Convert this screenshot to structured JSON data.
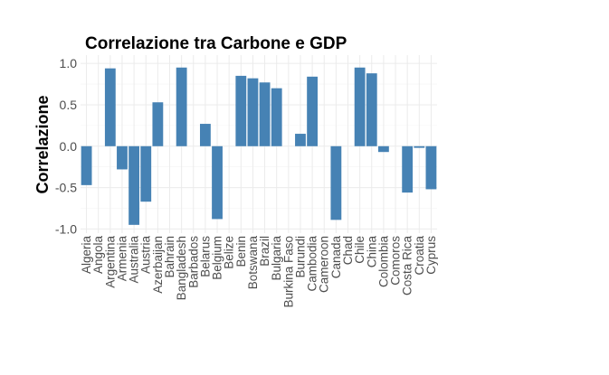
{
  "chart_data": {
    "type": "bar",
    "title": "Correlazione tra Carbone e GDP",
    "xlabel": "",
    "ylabel": "Correlazione",
    "ylim": [
      -1.05,
      1.1
    ],
    "yticks": [
      -1.0,
      -0.5,
      0.0,
      0.5,
      1.0
    ],
    "ytick_labels": [
      "-1.0",
      "-0.5",
      "0.0",
      "0.5",
      "1.0"
    ],
    "grid": true,
    "bar_color": "#4682b4",
    "categories": [
      "Algeria",
      "Angola",
      "Argentina",
      "Armenia",
      "Australia",
      "Austria",
      "Azerbaijan",
      "Bahrain",
      "Bangladesh",
      "Barbados",
      "Belarus",
      "Belgium",
      "Belize",
      "Benin",
      "Botswana",
      "Brazil",
      "Bulgaria",
      "Burkina Faso",
      "Burundi",
      "Cambodia",
      "Cameroon",
      "Canada",
      "Chad",
      "Chile",
      "China",
      "Colombia",
      "Comoros",
      "Costa Rica",
      "Croatia",
      "Cyprus"
    ],
    "values": [
      -0.47,
      null,
      0.94,
      -0.28,
      -0.95,
      -0.67,
      0.53,
      null,
      0.95,
      null,
      0.27,
      -0.88,
      null,
      0.85,
      0.82,
      0.77,
      0.7,
      null,
      0.15,
      0.84,
      null,
      -0.89,
      null,
      0.95,
      0.88,
      -0.07,
      null,
      -0.56,
      -0.02,
      -0.52
    ]
  }
}
